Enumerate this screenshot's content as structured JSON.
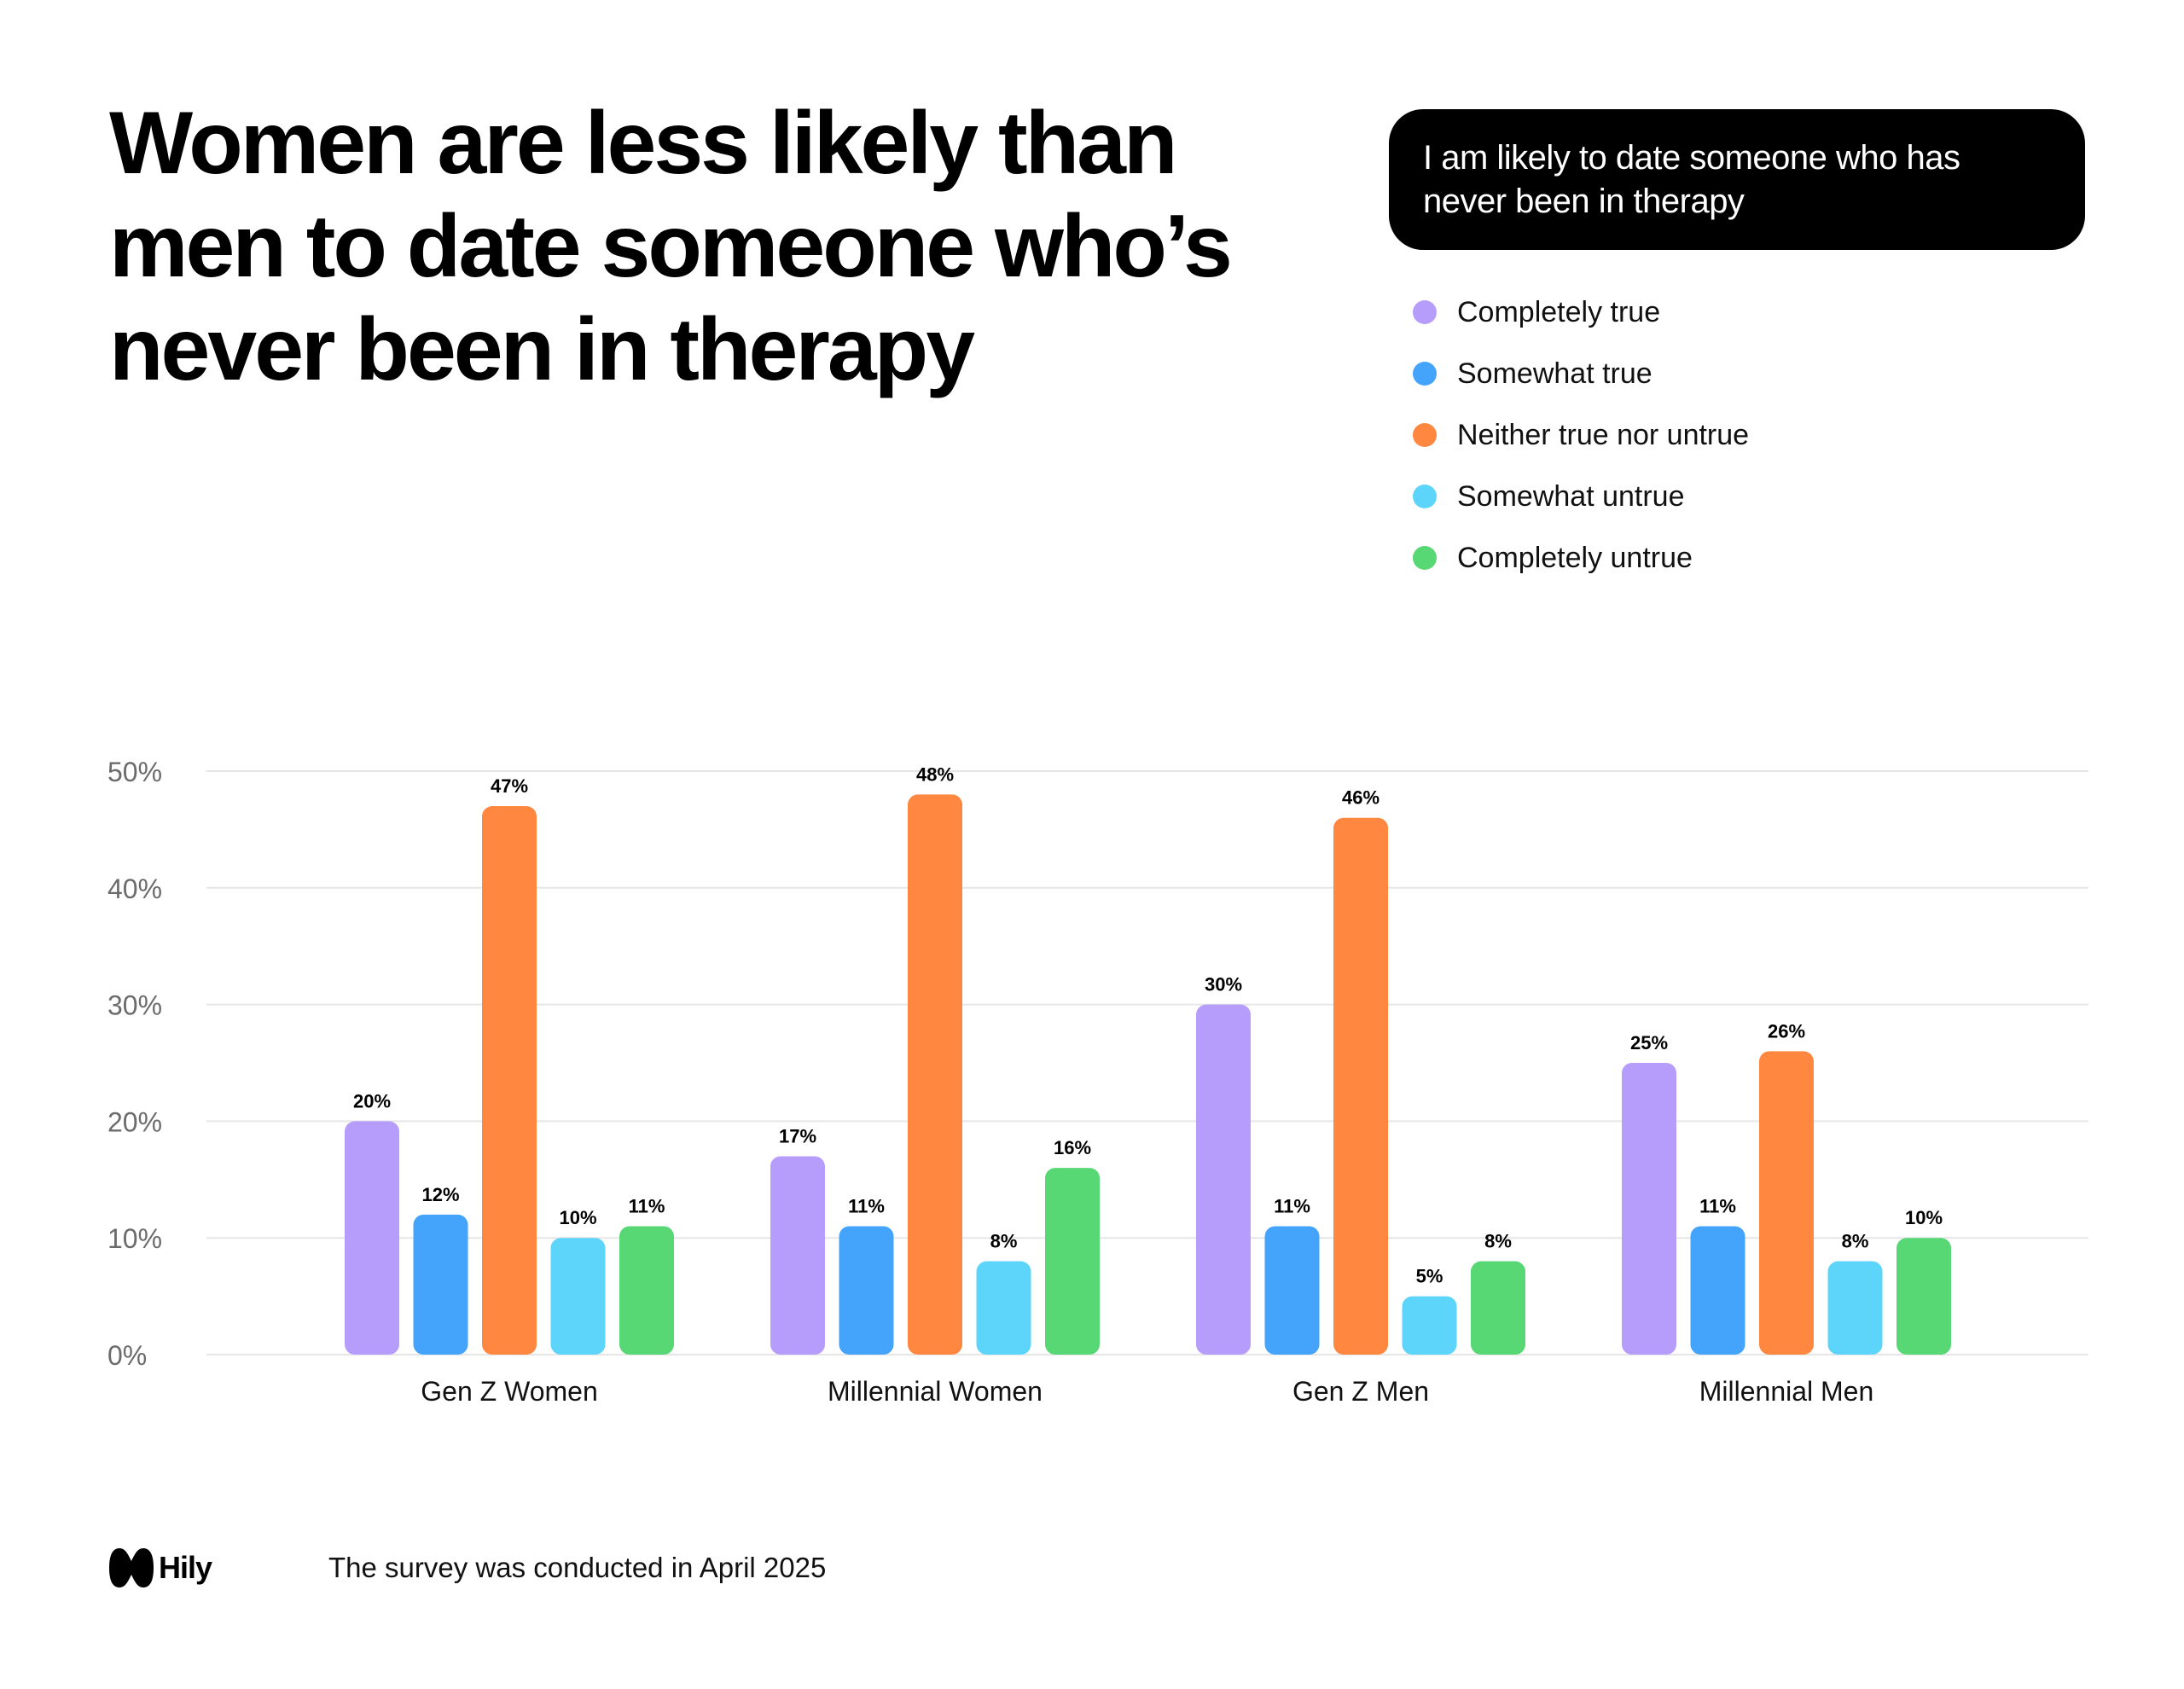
{
  "headline": {
    "lines": [
      "Women are less likely than",
      "men to date someone who’s",
      "never been in therapy"
    ]
  },
  "question": "I am likely to date someone who has never been in therapy",
  "legend": [
    {
      "label": "Completely true",
      "color": "#B69CFB"
    },
    {
      "label": "Somewhat true",
      "color": "#44A4FB"
    },
    {
      "label": "Neither true nor untrue",
      "color": "#FF8740"
    },
    {
      "label": "Somewhat untrue",
      "color": "#5DD5FA"
    },
    {
      "label": "Completely untrue",
      "color": "#57D874"
    }
  ],
  "chart_data": {
    "type": "bar",
    "title": "I am likely to date someone who has never been in therapy",
    "categories": [
      "Gen Z Women",
      "Millennial Women",
      "Gen Z Men",
      "Millennial Men"
    ],
    "series": [
      {
        "name": "Completely true",
        "color": "#B69CFB",
        "values": [
          20,
          17,
          30,
          25
        ],
        "labels": [
          "20%",
          "17%",
          "30%",
          "25%"
        ]
      },
      {
        "name": "Somewhat true",
        "color": "#44A4FB",
        "values": [
          12,
          11,
          11,
          11
        ],
        "labels": [
          "12%",
          "11%",
          "11%",
          "11%"
        ]
      },
      {
        "name": "Neither true nor untrue",
        "color": "#FF8740",
        "values": [
          47,
          48,
          46,
          26
        ],
        "labels": [
          "47%",
          "48%",
          "46%",
          "26%"
        ]
      },
      {
        "name": "Somewhat untrue",
        "color": "#5DD5FA",
        "values": [
          10,
          8,
          5,
          8
        ],
        "labels": [
          "10%",
          "8%",
          "5%",
          "8%"
        ]
      },
      {
        "name": "Completely untrue",
        "color": "#57D874",
        "values": [
          11,
          16,
          8,
          10
        ],
        "labels": [
          "11%",
          "16%",
          "8%",
          "10%"
        ]
      }
    ],
    "y_ticks": [
      0,
      10,
      20,
      30,
      40,
      50
    ],
    "y_tick_labels": [
      "0%",
      "10%",
      "20%",
      "30%",
      "40%",
      "50%"
    ],
    "ylim": [
      0,
      50
    ],
    "xlabel": "",
    "ylabel": "",
    "grid": true,
    "legend_position": "top-right"
  },
  "footer": {
    "logo_text": "Hily",
    "note": "The survey was conducted in April 2025"
  }
}
